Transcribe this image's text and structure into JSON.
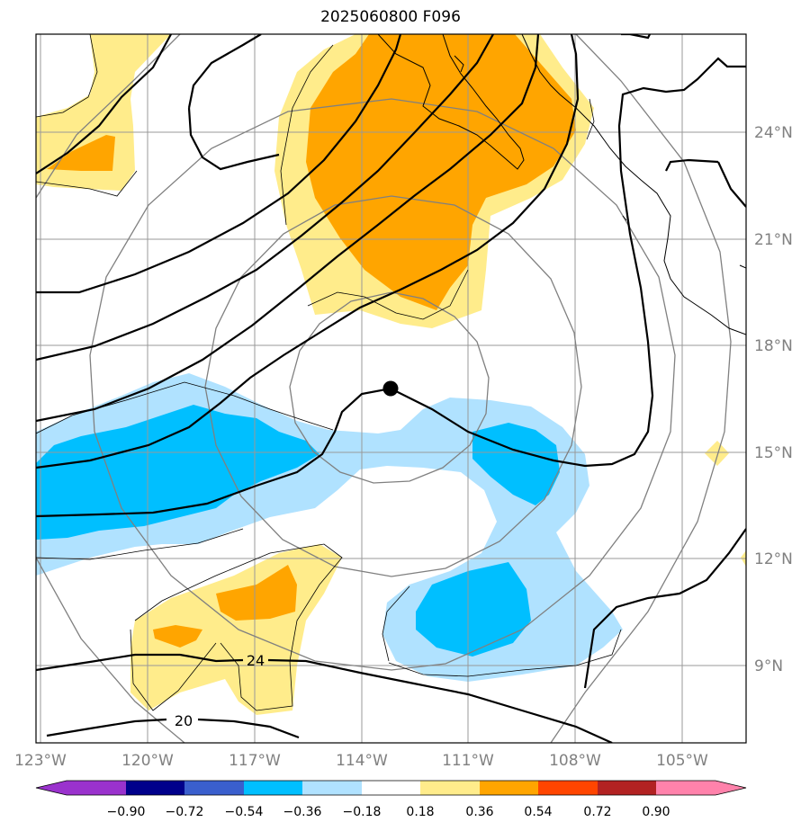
{
  "title": "2025060800 F096",
  "map": {
    "lon_range": [
      "123°W",
      "102°W"
    ],
    "lat_range": [
      "7°N",
      "27°N"
    ],
    "lon_ticks": [
      "123°W",
      "120°W",
      "117°W",
      "114°W",
      "111°W",
      "108°W",
      "105°W"
    ],
    "lat_ticks": [
      "24°N",
      "21°N",
      "18°N",
      "15°N",
      "12°N",
      "9°N"
    ],
    "center_marker": {
      "lon": "113°W",
      "lat": "16.8°N"
    },
    "contour_labels": [
      "24",
      "20"
    ]
  },
  "colorbar": {
    "labels": [
      "−0.90",
      "−0.72",
      "−0.54",
      "−0.36",
      "−0.18",
      "0.18",
      "0.36",
      "0.54",
      "0.72",
      "0.90"
    ],
    "colors": [
      "#9a32cd",
      "#00008b",
      "#3a5fcd",
      "#00bfff",
      "#b0e2ff",
      "#ffffff",
      "#ffec8b",
      "#ffa500",
      "#ff4500",
      "#b22222",
      "#ff82ab"
    ]
  },
  "colors": {
    "light_blue": "#b0e2ff",
    "deep_sky_blue": "#00bfff",
    "light_yellow": "#ffec8b",
    "orange": "#ffa500",
    "grid": "#999999",
    "range_rings": "#808080"
  }
}
